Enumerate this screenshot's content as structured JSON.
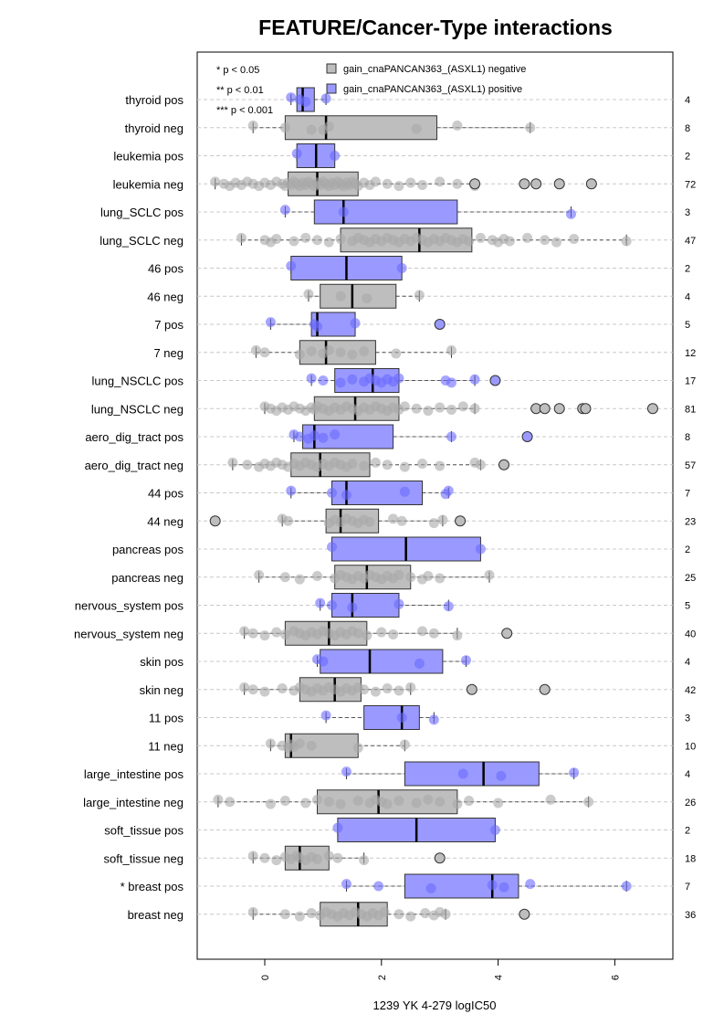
{
  "chart_data": {
    "type": "boxplot",
    "title": "FEATURE/Cancer-Type interactions",
    "xlabel": "1239 YK 4-279 logIC50",
    "xlim": [
      -1.2,
      7.0
    ],
    "x_ticks": [
      0,
      2,
      4,
      6
    ],
    "x_tick_labels": [
      "0",
      "2",
      "4",
      "6"
    ],
    "grid": "horizontal dashed",
    "legend": {
      "position": "top",
      "significance": [
        "* p < 0.05",
        "** p < 0.01",
        "*** p < 0.001"
      ],
      "entries": [
        {
          "label": "gain_cnaPANCAN363_(ASXL1) negative",
          "color": "#bebebe"
        },
        {
          "label": "gain_cnaPANCAN363_(ASXL1) positive",
          "color": "#9999ff"
        }
      ]
    },
    "colors": {
      "negative_box": "#bebebe",
      "positive_box": "#9999ff",
      "negative_point": "#a9a9a9",
      "positive_point": "#6b6bff"
    },
    "rows": [
      {
        "label": "thyroid pos",
        "n": "4",
        "group": "positive",
        "whisker": [
          0.45,
          1.05
        ],
        "q1": 0.55,
        "median": 0.65,
        "q3": 0.85,
        "points": [
          0.45,
          0.6,
          0.7,
          1.05
        ],
        "outliers": []
      },
      {
        "label": "thyroid neg",
        "n": "8",
        "group": "negative",
        "whisker": [
          -0.2,
          4.55
        ],
        "q1": 0.35,
        "median": 1.05,
        "q3": 2.95,
        "points": [
          -0.2,
          0.35,
          1.0,
          1.1,
          2.6,
          3.3,
          4.55,
          0.8
        ],
        "outliers": []
      },
      {
        "label": "leukemia pos",
        "n": "2",
        "group": "positive",
        "whisker": [
          0.55,
          1.2
        ],
        "q1": 0.55,
        "median": 0.88,
        "q3": 1.2,
        "points": [
          0.55,
          1.2
        ],
        "outliers": []
      },
      {
        "label": "leukemia neg",
        "n": "72",
        "group": "negative",
        "whisker": [
          -0.85,
          3.6
        ],
        "q1": 0.4,
        "median": 0.9,
        "q3": 1.6,
        "points": [
          -0.85,
          -0.7,
          -0.6,
          -0.5,
          -0.4,
          -0.3,
          -0.2,
          -0.1,
          0.0,
          0.1,
          0.2,
          0.3,
          0.35,
          0.4,
          0.45,
          0.5,
          0.55,
          0.6,
          0.65,
          0.7,
          0.75,
          0.8,
          0.85,
          0.9,
          0.95,
          1.0,
          1.05,
          1.1,
          1.15,
          1.2,
          1.25,
          1.3,
          1.35,
          1.4,
          1.45,
          1.5,
          1.55,
          1.6,
          1.7,
          1.8,
          1.9,
          2.1,
          2.3,
          2.5,
          2.7,
          3.0,
          3.3,
          3.6
        ],
        "outliers": [
          3.6,
          4.45,
          4.65,
          5.05,
          5.6
        ]
      },
      {
        "label": "lung_SCLC pos",
        "n": "3",
        "group": "positive",
        "whisker": [
          0.35,
          5.25
        ],
        "q1": 0.85,
        "median": 1.35,
        "q3": 3.3,
        "points": [
          0.35,
          1.35,
          5.25
        ],
        "outliers": []
      },
      {
        "label": "lung_SCLC neg",
        "n": "47",
        "group": "negative",
        "whisker": [
          -0.4,
          6.2
        ],
        "q1": 1.3,
        "median": 2.65,
        "q3": 3.55,
        "points": [
          -0.4,
          0.0,
          0.1,
          0.2,
          0.5,
          0.7,
          0.9,
          1.1,
          1.3,
          1.5,
          1.6,
          1.7,
          1.8,
          1.9,
          2.0,
          2.1,
          2.2,
          2.3,
          2.4,
          2.5,
          2.6,
          2.7,
          2.8,
          2.9,
          3.0,
          3.1,
          3.2,
          3.3,
          3.4,
          3.5,
          3.7,
          3.9,
          4.0,
          4.1,
          4.2,
          4.5,
          4.8,
          5.0,
          5.3,
          6.2
        ],
        "outliers": []
      },
      {
        "label": "46 pos",
        "n": "2",
        "group": "positive",
        "whisker": [
          0.45,
          2.35
        ],
        "q1": 0.45,
        "median": 1.4,
        "q3": 2.35,
        "points": [
          0.45,
          2.35
        ],
        "outliers": []
      },
      {
        "label": "46 neg",
        "n": "4",
        "group": "negative",
        "whisker": [
          0.75,
          2.65
        ],
        "q1": 0.95,
        "median": 1.5,
        "q3": 2.25,
        "points": [
          0.75,
          1.3,
          1.75,
          2.65
        ],
        "outliers": []
      },
      {
        "label": "7 pos",
        "n": "5",
        "group": "positive",
        "whisker": [
          0.1,
          1.55
        ],
        "q1": 0.8,
        "median": 0.9,
        "q3": 1.55,
        "points": [
          0.1,
          0.85,
          0.9,
          1.55
        ],
        "outliers": [
          3.0
        ]
      },
      {
        "label": "7 neg",
        "n": "12",
        "group": "negative",
        "whisker": [
          -0.15,
          3.2
        ],
        "q1": 0.6,
        "median": 1.05,
        "q3": 1.9,
        "points": [
          -0.15,
          0.0,
          0.6,
          0.8,
          1.0,
          1.1,
          1.3,
          1.5,
          1.7,
          2.25,
          3.2
        ],
        "outliers": []
      },
      {
        "label": "lung_NSCLC pos",
        "n": "17",
        "group": "positive",
        "whisker": [
          0.8,
          3.6
        ],
        "q1": 1.2,
        "median": 1.85,
        "q3": 2.3,
        "points": [
          0.8,
          1.0,
          1.3,
          1.5,
          1.7,
          1.8,
          1.9,
          2.0,
          2.1,
          2.2,
          2.3,
          3.1,
          3.2,
          3.6
        ],
        "outliers": [
          3.95
        ]
      },
      {
        "label": "lung_NSCLC neg",
        "n": "81",
        "group": "negative",
        "whisker": [
          0.0,
          3.6
        ],
        "q1": 0.85,
        "median": 1.55,
        "q3": 2.3,
        "points": [
          0.0,
          0.1,
          0.2,
          0.3,
          0.4,
          0.5,
          0.6,
          0.7,
          0.8,
          0.85,
          0.9,
          1.0,
          1.1,
          1.2,
          1.3,
          1.4,
          1.5,
          1.6,
          1.7,
          1.8,
          1.9,
          2.0,
          2.1,
          2.2,
          2.3,
          2.4,
          2.6,
          2.8,
          3.0,
          3.2,
          3.4,
          3.6
        ],
        "outliers": [
          4.65,
          4.8,
          5.05,
          5.45,
          5.5,
          6.65
        ]
      },
      {
        "label": "aero_dig_tract pos",
        "n": "8",
        "group": "positive",
        "whisker": [
          0.5,
          3.2
        ],
        "q1": 0.65,
        "median": 0.85,
        "q3": 2.2,
        "points": [
          0.5,
          0.6,
          0.75,
          0.85,
          1.0,
          1.2,
          3.2
        ],
        "outliers": [
          4.5
        ]
      },
      {
        "label": "aero_dig_tract neg",
        "n": "57",
        "group": "negative",
        "whisker": [
          -0.55,
          3.7
        ],
        "q1": 0.45,
        "median": 0.95,
        "q3": 1.8,
        "points": [
          -0.55,
          -0.3,
          -0.1,
          0.0,
          0.1,
          0.2,
          0.3,
          0.4,
          0.5,
          0.6,
          0.7,
          0.8,
          0.9,
          1.0,
          1.1,
          1.2,
          1.3,
          1.4,
          1.5,
          1.7,
          1.9,
          2.1,
          2.4,
          2.7,
          3.0,
          3.6,
          3.7
        ],
        "outliers": [
          4.1
        ]
      },
      {
        "label": "44 pos",
        "n": "7",
        "group": "positive",
        "whisker": [
          0.45,
          3.15
        ],
        "q1": 1.15,
        "median": 1.4,
        "q3": 2.7,
        "points": [
          0.45,
          1.15,
          1.4,
          2.4,
          3.1,
          3.15
        ],
        "outliers": []
      },
      {
        "label": "44 neg",
        "n": "23",
        "group": "negative",
        "whisker": [
          0.3,
          3.05
        ],
        "q1": 1.05,
        "median": 1.3,
        "q3": 1.95,
        "points": [
          0.3,
          0.4,
          1.1,
          1.2,
          1.3,
          1.4,
          1.5,
          1.6,
          1.7,
          1.8,
          2.2,
          2.35,
          2.9,
          3.05
        ],
        "outliers": [
          -0.85,
          3.35
        ]
      },
      {
        "label": "pancreas pos",
        "n": "2",
        "group": "positive",
        "whisker": [
          1.15,
          3.7
        ],
        "q1": 1.15,
        "median": 2.42,
        "q3": 3.7,
        "points": [
          1.15,
          3.7
        ],
        "outliers": []
      },
      {
        "label": "pancreas neg",
        "n": "25",
        "group": "negative",
        "whisker": [
          -0.1,
          3.85
        ],
        "q1": 1.2,
        "median": 1.75,
        "q3": 2.5,
        "points": [
          -0.1,
          0.35,
          0.6,
          0.9,
          1.2,
          1.3,
          1.4,
          1.5,
          1.6,
          1.7,
          1.8,
          1.9,
          2.0,
          2.1,
          2.2,
          2.3,
          2.5,
          2.7,
          2.8,
          3.0,
          3.85
        ],
        "outliers": []
      },
      {
        "label": "nervous_system pos",
        "n": "5",
        "group": "positive",
        "whisker": [
          0.95,
          3.15
        ],
        "q1": 1.15,
        "median": 1.5,
        "q3": 2.3,
        "points": [
          0.95,
          1.15,
          1.5,
          2.3,
          3.15
        ],
        "outliers": []
      },
      {
        "label": "nervous_system neg",
        "n": "40",
        "group": "negative",
        "whisker": [
          -0.35,
          3.3
        ],
        "q1": 0.35,
        "median": 1.1,
        "q3": 1.75,
        "points": [
          -0.35,
          -0.2,
          0.0,
          0.2,
          0.35,
          0.5,
          0.6,
          0.7,
          0.8,
          0.9,
          1.0,
          1.1,
          1.2,
          1.3,
          1.4,
          1.5,
          1.6,
          1.75,
          2.0,
          2.2,
          2.7,
          2.9,
          3.3
        ],
        "outliers": [
          4.15
        ]
      },
      {
        "label": "skin pos",
        "n": "4",
        "group": "positive",
        "whisker": [
          0.9,
          3.45
        ],
        "q1": 0.95,
        "median": 1.8,
        "q3": 3.05,
        "points": [
          0.9,
          1.0,
          2.65,
          3.45
        ],
        "outliers": []
      },
      {
        "label": "skin neg",
        "n": "42",
        "group": "negative",
        "whisker": [
          -0.35,
          2.5
        ],
        "q1": 0.6,
        "median": 1.2,
        "q3": 1.65,
        "points": [
          -0.35,
          -0.2,
          0.0,
          0.3,
          0.5,
          0.6,
          0.7,
          0.8,
          0.9,
          1.0,
          1.1,
          1.2,
          1.3,
          1.4,
          1.5,
          1.6,
          1.7,
          1.9,
          2.1,
          2.3,
          2.5
        ],
        "outliers": [
          3.55,
          4.8
        ]
      },
      {
        "label": "11 pos",
        "n": "3",
        "group": "positive",
        "whisker": [
          1.05,
          2.9
        ],
        "q1": 1.7,
        "median": 2.35,
        "q3": 2.65,
        "points": [
          1.05,
          2.35,
          2.9
        ],
        "outliers": []
      },
      {
        "label": "11 neg",
        "n": "10",
        "group": "negative",
        "whisker": [
          0.1,
          2.4
        ],
        "q1": 0.35,
        "median": 0.45,
        "q3": 1.6,
        "points": [
          0.1,
          0.3,
          0.4,
          0.45,
          0.5,
          0.6,
          0.8,
          1.6,
          2.4
        ],
        "outliers": []
      },
      {
        "label": "large_intestine pos",
        "n": "4",
        "group": "positive",
        "whisker": [
          1.4,
          5.3
        ],
        "q1": 2.4,
        "median": 3.75,
        "q3": 4.7,
        "points": [
          1.4,
          3.4,
          4.05,
          5.3
        ],
        "outliers": []
      },
      {
        "label": "large_intestine neg",
        "n": "26",
        "group": "negative",
        "whisker": [
          -0.8,
          5.55
        ],
        "q1": 0.9,
        "median": 1.95,
        "q3": 3.3,
        "points": [
          -0.8,
          -0.6,
          0.1,
          0.35,
          0.7,
          0.9,
          1.1,
          1.3,
          1.6,
          1.8,
          1.9,
          2.0,
          2.1,
          2.3,
          2.6,
          2.8,
          3.0,
          3.3,
          3.5,
          4.0,
          4.9,
          5.55
        ],
        "outliers": []
      },
      {
        "label": "soft_tissue pos",
        "n": "2",
        "group": "positive",
        "whisker": [
          1.25,
          3.95
        ],
        "q1": 1.25,
        "median": 2.6,
        "q3": 3.95,
        "points": [
          1.25,
          3.95
        ],
        "outliers": []
      },
      {
        "label": "soft_tissue neg",
        "n": "18",
        "group": "negative",
        "whisker": [
          -0.2,
          1.7
        ],
        "q1": 0.35,
        "median": 0.6,
        "q3": 1.1,
        "points": [
          -0.2,
          0.0,
          0.2,
          0.35,
          0.45,
          0.55,
          0.6,
          0.7,
          0.8,
          0.9,
          1.1,
          1.25,
          1.7
        ],
        "outliers": [
          3.0
        ]
      },
      {
        "label": "* breast pos",
        "n": "7",
        "group": "positive",
        "whisker": [
          1.4,
          6.2
        ],
        "q1": 2.4,
        "median": 3.9,
        "q3": 4.35,
        "points": [
          1.4,
          1.95,
          2.85,
          3.9,
          4.1,
          4.55,
          6.2
        ],
        "outliers": []
      },
      {
        "label": "breast neg",
        "n": "36",
        "group": "negative",
        "whisker": [
          -0.2,
          3.1
        ],
        "q1": 0.95,
        "median": 1.6,
        "q3": 2.1,
        "points": [
          -0.2,
          0.35,
          0.6,
          0.8,
          0.95,
          1.05,
          1.15,
          1.25,
          1.35,
          1.45,
          1.55,
          1.65,
          1.75,
          1.85,
          1.95,
          2.05,
          2.3,
          2.5,
          2.75,
          2.9,
          3.0,
          3.1
        ],
        "outliers": [
          4.45
        ]
      }
    ]
  }
}
